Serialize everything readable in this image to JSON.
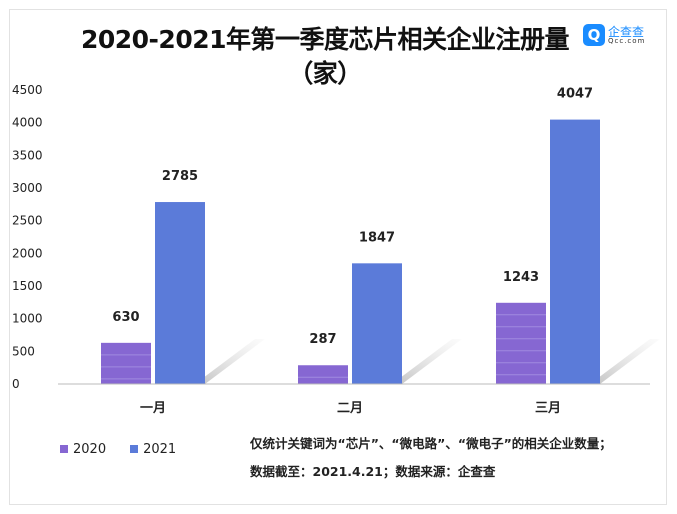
{
  "title_line1": "2020-2021年第一季度芯片相关企业注册量",
  "title_line2": "（家）",
  "logo": {
    "mark": "Q",
    "cn": "企查查",
    "en": "Qcc.com"
  },
  "chart_data": {
    "type": "bar",
    "title": "2020-2021年第一季度芯片相关企业注册量（家）",
    "categories": [
      "一月",
      "二月",
      "三月"
    ],
    "series": [
      {
        "name": "2020",
        "values": [
          630,
          287,
          1243
        ],
        "color": "#8667d2"
      },
      {
        "name": "2021",
        "values": [
          2785,
          1847,
          4047
        ],
        "color": "#5b7bd9"
      }
    ],
    "yticks": [
      0,
      500,
      1000,
      1500,
      2000,
      2500,
      3000,
      3500,
      4000,
      4500
    ],
    "ylim": [
      0,
      4500
    ],
    "grid": false,
    "legend": "bottom-left"
  },
  "notes": {
    "line1": "仅统计关键词为“芯片”、“微电路”、“微电子”的相关企业数量；",
    "line2": "数据截至：2021.4.21；数据来源：企查查"
  }
}
